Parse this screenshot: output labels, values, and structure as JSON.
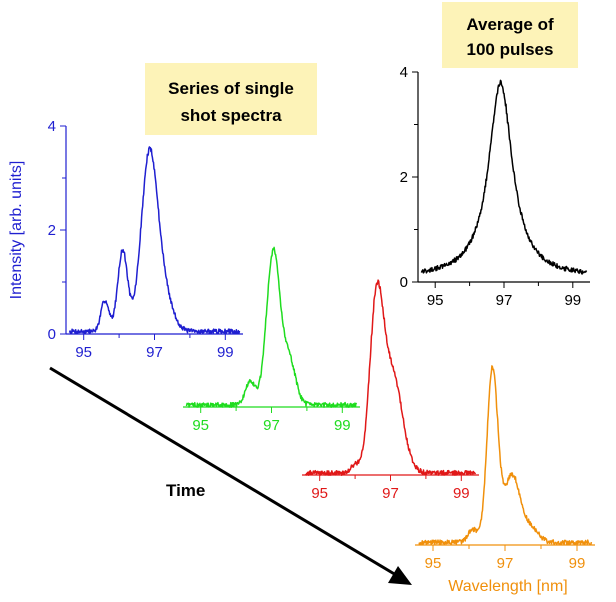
{
  "colors": {
    "blue": "#1f1fd0",
    "green": "#1fdc1f",
    "red": "#e01818",
    "orange": "#f0900c",
    "black": "#000000",
    "note_bg": "#fdf3b8"
  },
  "annotations": {
    "series_box": [
      "Series of single",
      "shot spectra"
    ],
    "average_box": [
      "Average of",
      "100 pulses"
    ],
    "time_label": "Time"
  },
  "chart_data": [
    {
      "type": "line",
      "id": "blue",
      "ylabel": "Intensity [arb. units]",
      "xlabel": "",
      "xlim": [
        94.5,
        99.5
      ],
      "ylim": [
        0,
        4
      ],
      "xticks": [
        95,
        97,
        99
      ],
      "xtick_labels": [
        "95",
        "97",
        "99"
      ],
      "yticks": [
        0,
        2,
        4
      ],
      "ytick_labels": [
        "0",
        "2",
        "4"
      ],
      "peaks": [
        {
          "center": 95.6,
          "amp": 0.6,
          "width": 0.11
        },
        {
          "center": 96.1,
          "amp": 1.55,
          "width": 0.14
        },
        {
          "center": 96.85,
          "amp": 3.3,
          "width": 0.23
        },
        {
          "center": 97.25,
          "amp": 0.7,
          "width": 0.25
        }
      ],
      "baseline": 0.05
    },
    {
      "type": "line",
      "id": "green",
      "xlabel": "",
      "xlim": [
        94.5,
        99.5
      ],
      "ylim": [
        0,
        4
      ],
      "xticks": [
        95,
        97,
        99
      ],
      "xtick_labels": [
        "95",
        "97",
        "99"
      ],
      "peaks": [
        {
          "center": 96.4,
          "amp": 0.45,
          "width": 0.14
        },
        {
          "center": 97.05,
          "amp": 2.95,
          "width": 0.19
        },
        {
          "center": 97.5,
          "amp": 0.85,
          "width": 0.18
        }
      ],
      "baseline": 0.04
    },
    {
      "type": "line",
      "id": "red",
      "xlabel": "",
      "xlim": [
        94.5,
        99.5
      ],
      "ylim": [
        0,
        4
      ],
      "xticks": [
        95,
        97,
        99
      ],
      "xtick_labels": [
        "95",
        "97",
        "99"
      ],
      "peaks": [
        {
          "center": 96.0,
          "amp": 0.15,
          "width": 0.12
        },
        {
          "center": 96.6,
          "amp": 3.1,
          "width": 0.19
        },
        {
          "center": 97.05,
          "amp": 1.9,
          "width": 0.28
        }
      ],
      "baseline": 0.04
    },
    {
      "type": "line",
      "id": "orange",
      "xlabel": "Wavelength [nm]",
      "xlim": [
        94.5,
        99.5
      ],
      "ylim": [
        0,
        4
      ],
      "xticks": [
        95,
        97,
        99
      ],
      "xtick_labels": [
        "95",
        "97",
        "99"
      ],
      "peaks": [
        {
          "center": 96.1,
          "amp": 0.25,
          "width": 0.13
        },
        {
          "center": 96.65,
          "amp": 3.3,
          "width": 0.15
        },
        {
          "center": 97.2,
          "amp": 1.3,
          "width": 0.23
        },
        {
          "center": 97.75,
          "amp": 0.25,
          "width": 0.2
        }
      ],
      "baseline": 0.05
    },
    {
      "type": "line",
      "id": "black",
      "xlabel": "",
      "xlim": [
        94.5,
        99.5
      ],
      "ylim": [
        0,
        4
      ],
      "xticks": [
        95,
        97,
        99
      ],
      "xtick_labels": [
        "95",
        "97",
        "99"
      ],
      "yticks": [
        0,
        2,
        4
      ],
      "ytick_labels": [
        "0",
        "2",
        "4"
      ],
      "peaks": [
        {
          "center": 96.9,
          "amp": 3.7,
          "width": 0.42,
          "shape": "lorentz"
        }
      ],
      "baseline": 0.08
    }
  ]
}
